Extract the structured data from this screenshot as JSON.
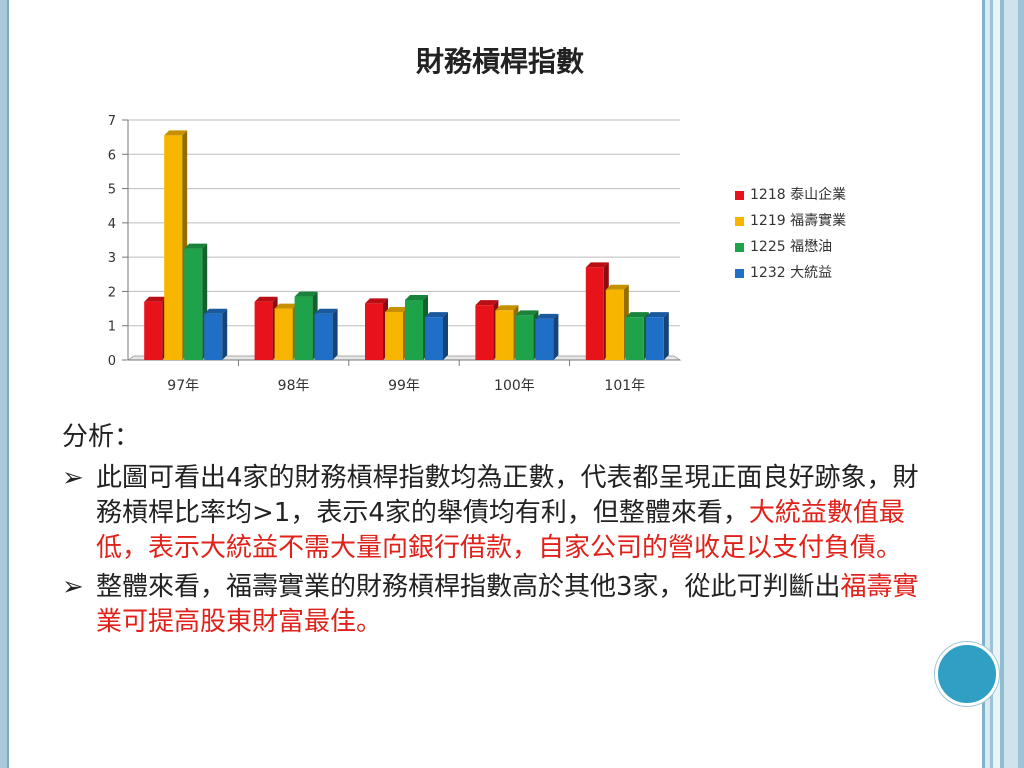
{
  "chart_data": {
    "type": "bar",
    "title": "財務槓桿指數",
    "categories": [
      "97年",
      "98年",
      "99年",
      "100年",
      "101年"
    ],
    "series": [
      {
        "name": "1218 泰山企業",
        "color": "#e8121a",
        "values": [
          1.7,
          1.7,
          1.65,
          1.6,
          2.7
        ]
      },
      {
        "name": "1219 福壽實業",
        "color": "#f7b500",
        "values": [
          6.55,
          1.5,
          1.4,
          1.45,
          2.05
        ]
      },
      {
        "name": "1225 福懋油",
        "color": "#1fa34a",
        "values": [
          3.25,
          1.85,
          1.75,
          1.3,
          1.25
        ]
      },
      {
        "name": "1232 大統益",
        "color": "#1f6fc6",
        "values": [
          1.35,
          1.35,
          1.25,
          1.2,
          1.25
        ]
      }
    ],
    "ylim": [
      0,
      7
    ],
    "yticks": [
      0,
      1,
      2,
      3,
      4,
      5,
      6,
      7
    ],
    "grid": true,
    "legend": "right"
  },
  "analysis_label": "分析：",
  "bullets": [
    {
      "arrow": "➢",
      "normal": "此圖可看出4家的財務槓桿指數均為正數，代表都呈現正面良好跡象，財務槓桿比率均>1，表示4家的舉債均有利，但整體來看，",
      "highlight": "大統益數值最低，表示大統益不需大量向銀行借款，自家公司的營收足以支付負債。"
    },
    {
      "arrow": "➢",
      "normal": "整體來看，福壽實業的財務槓桿指數高於其他3家，從此可判斷出",
      "highlight": "福壽實業可提高股東財富最佳。"
    }
  ]
}
